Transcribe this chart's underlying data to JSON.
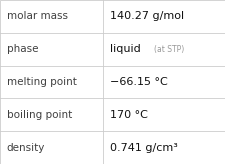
{
  "rows": [
    {
      "label": "molar mass",
      "value": "140.27 g/mol",
      "type": "plain"
    },
    {
      "label": "phase",
      "value": "liquid",
      "suffix": " (at STP)",
      "type": "suffix"
    },
    {
      "label": "melting point",
      "value": "−66.15 °C",
      "type": "plain"
    },
    {
      "label": "boiling point",
      "value": "170 °C",
      "type": "plain"
    },
    {
      "label": "density",
      "value": "0.741 g/cm³",
      "type": "plain"
    }
  ],
  "col_split": 0.455,
  "bg_color": "#ffffff",
  "grid_color": "#cccccc",
  "label_color": "#404040",
  "value_color": "#111111",
  "suffix_color": "#999999",
  "label_fontsize": 7.5,
  "value_fontsize": 8.0,
  "suffix_fontsize": 5.5,
  "font_family": "DejaVu Sans"
}
